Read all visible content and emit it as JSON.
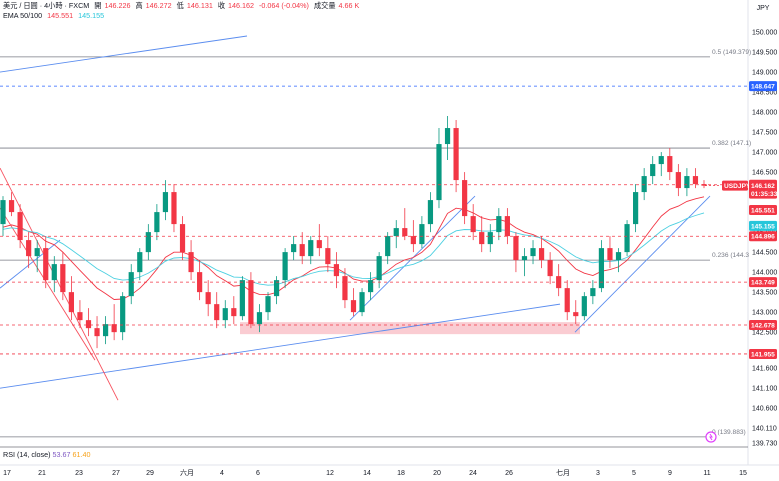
{
  "header": {
    "symbol": "美元 / 日圓 · 4小時 · FXCM",
    "open_label": "開",
    "open": "146.226",
    "high_label": "高",
    "high": "146.272",
    "low_label": "低",
    "low": "146.131",
    "close_label": "收",
    "close": "146.162",
    "change": "-0.064 (-0.04%)",
    "volume_label": "成交量",
    "volume": "4.66 K",
    "ema_label": "EMA 50/100",
    "ema50": "145.551",
    "ema100": "145.155"
  },
  "rsi": {
    "label": "RSI (14, close)",
    "value": "53.67",
    "ma": "61.40"
  },
  "currency": "JPY",
  "colors": {
    "up": "#089981",
    "down": "#f23645",
    "trend": "#5b8def",
    "ema50": "#f23645",
    "ema100": "#4dd0e1",
    "zone": "#f8bbc3"
  },
  "chart_data": {
    "type": "candlestick",
    "y_axis": {
      "ticks": [
        "150.000",
        "149.500",
        "149.000",
        "148.500",
        "148.000",
        "147.500",
        "147.000",
        "146.500",
        "146.000",
        "145.500",
        "145.000",
        "144.500",
        "144.000",
        "143.500",
        "143.000",
        "142.500",
        "142.000",
        "141.600",
        "141.100",
        "140.600",
        "140.110",
        "139.730"
      ]
    },
    "x_axis": {
      "labels": [
        "17",
        "21",
        "23",
        "27",
        "29",
        "六月",
        "4",
        "6",
        "12",
        "14",
        "18",
        "20",
        "24",
        "26",
        "七月",
        "3",
        "5",
        "9",
        "11",
        "15"
      ]
    },
    "fib_levels": [
      {
        "label": "0.5 (149.379)",
        "value": 149.379
      },
      {
        "label": "0.382 (147.1)",
        "value": 147.1
      },
      {
        "label": "0.236 (144.3",
        "value": 144.3
      },
      {
        "label": "0 (139.883)",
        "value": 139.883
      }
    ],
    "price_lines": [
      {
        "label": "148.647",
        "value": 148.647,
        "style": "blue-dashed",
        "bg": "#2962ff"
      },
      {
        "label": "146.184",
        "value": 146.184,
        "style": "red-dashed",
        "bg": "#f23645"
      },
      {
        "label": "145.551",
        "value": 145.551,
        "style": "ema50",
        "bg": "#f23645"
      },
      {
        "label": "145.155",
        "value": 145.155,
        "style": "ema100",
        "bg": "#26c6da"
      },
      {
        "label": "144.896",
        "value": 144.896,
        "style": "red-dashed",
        "bg": "#f23645"
      },
      {
        "label": "143.749",
        "value": 143.749,
        "style": "red-dashed",
        "bg": "#f23645"
      },
      {
        "label": "142.678",
        "value": 142.678,
        "style": "red-dashed",
        "bg": "#f23645"
      },
      {
        "label": "141.955",
        "value": 141.955,
        "style": "red-dashed",
        "bg": "#f23645"
      }
    ],
    "last_price": {
      "symbol": "USDJPY",
      "price": "146.162",
      "countdown": "01:35:33"
    },
    "candles": [
      [
        145.2,
        145.9,
        144.9,
        145.8
      ],
      [
        145.8,
        146.0,
        145.4,
        145.5
      ],
      [
        145.5,
        145.7,
        144.6,
        144.8
      ],
      [
        144.8,
        145.0,
        144.1,
        144.4
      ],
      [
        144.4,
        144.8,
        144.0,
        144.6
      ],
      [
        144.6,
        144.9,
        143.6,
        143.8
      ],
      [
        143.8,
        144.4,
        143.5,
        144.2
      ],
      [
        144.2,
        144.5,
        143.3,
        143.5
      ],
      [
        143.5,
        143.9,
        142.8,
        143.0
      ],
      [
        143.0,
        143.3,
        142.6,
        142.8
      ],
      [
        142.8,
        143.1,
        142.4,
        142.6
      ],
      [
        142.6,
        142.9,
        142.1,
        142.4
      ],
      [
        142.4,
        142.9,
        142.2,
        142.7
      ],
      [
        142.7,
        143.2,
        142.3,
        142.5
      ],
      [
        142.5,
        143.5,
        142.3,
        143.4
      ],
      [
        143.4,
        144.2,
        143.2,
        144.0
      ],
      [
        144.0,
        144.6,
        143.8,
        144.5
      ],
      [
        144.5,
        145.2,
        144.3,
        145.0
      ],
      [
        145.0,
        145.7,
        144.8,
        145.5
      ],
      [
        145.5,
        146.3,
        145.3,
        146.0
      ],
      [
        146.0,
        146.2,
        145.0,
        145.2
      ],
      [
        145.2,
        145.4,
        144.3,
        144.5
      ],
      [
        144.5,
        144.8,
        143.8,
        144.0
      ],
      [
        144.0,
        144.3,
        143.3,
        143.5
      ],
      [
        143.5,
        143.8,
        142.9,
        143.2
      ],
      [
        143.2,
        143.5,
        142.6,
        142.8
      ],
      [
        142.8,
        143.3,
        142.6,
        143.1
      ],
      [
        143.1,
        143.4,
        142.7,
        142.9
      ],
      [
        142.9,
        143.9,
        142.8,
        143.8
      ],
      [
        143.8,
        144.0,
        142.6,
        142.7
      ],
      [
        142.7,
        143.2,
        142.5,
        143.0
      ],
      [
        143.0,
        143.5,
        142.8,
        143.4
      ],
      [
        143.4,
        143.9,
        143.2,
        143.8
      ],
      [
        143.8,
        144.6,
        143.6,
        144.5
      ],
      [
        144.5,
        144.9,
        144.3,
        144.7
      ],
      [
        144.7,
        145.0,
        144.2,
        144.4
      ],
      [
        144.4,
        144.9,
        144.2,
        144.8
      ],
      [
        144.8,
        145.2,
        144.4,
        144.6
      ],
      [
        144.6,
        144.9,
        144.0,
        144.2
      ],
      [
        144.2,
        144.5,
        143.6,
        143.9
      ],
      [
        143.9,
        144.1,
        143.1,
        143.3
      ],
      [
        143.3,
        143.6,
        142.9,
        143.0
      ],
      [
        143.0,
        143.6,
        142.9,
        143.5
      ],
      [
        143.5,
        144.0,
        143.3,
        143.8
      ],
      [
        143.8,
        144.5,
        143.6,
        144.4
      ],
      [
        144.4,
        145.0,
        144.2,
        144.9
      ],
      [
        144.9,
        145.3,
        144.6,
        145.1
      ],
      [
        145.1,
        145.6,
        144.8,
        144.9
      ],
      [
        144.9,
        145.3,
        144.5,
        144.7
      ],
      [
        144.7,
        145.4,
        144.6,
        145.2
      ],
      [
        145.2,
        146.0,
        145.0,
        145.8
      ],
      [
        145.8,
        147.6,
        145.6,
        147.2
      ],
      [
        147.2,
        147.9,
        146.8,
        147.6
      ],
      [
        147.6,
        147.8,
        146.0,
        146.3
      ],
      [
        146.3,
        146.5,
        145.2,
        145.4
      ],
      [
        145.4,
        145.7,
        144.8,
        145.0
      ],
      [
        145.0,
        145.4,
        144.5,
        144.7
      ],
      [
        144.7,
        145.2,
        144.5,
        145.0
      ],
      [
        145.0,
        145.6,
        144.8,
        145.4
      ],
      [
        145.4,
        145.6,
        144.7,
        144.9
      ],
      [
        144.9,
        145.0,
        144.0,
        144.3
      ],
      [
        144.3,
        144.6,
        143.9,
        144.4
      ],
      [
        144.4,
        144.8,
        144.2,
        144.6
      ],
      [
        144.6,
        144.9,
        144.1,
        144.3
      ],
      [
        144.3,
        144.5,
        143.7,
        143.9
      ],
      [
        143.9,
        144.2,
        143.4,
        143.6
      ],
      [
        143.6,
        143.8,
        142.8,
        143.0
      ],
      [
        143.0,
        143.3,
        142.7,
        142.9
      ],
      [
        142.9,
        143.5,
        142.8,
        143.4
      ],
      [
        143.4,
        143.8,
        143.2,
        143.6
      ],
      [
        143.6,
        144.8,
        143.5,
        144.6
      ],
      [
        144.6,
        144.9,
        144.1,
        144.3
      ],
      [
        144.3,
        144.6,
        144.0,
        144.5
      ],
      [
        144.5,
        145.3,
        144.4,
        145.2
      ],
      [
        145.2,
        146.2,
        145.0,
        146.0
      ],
      [
        146.0,
        146.6,
        145.8,
        146.4
      ],
      [
        146.4,
        146.9,
        146.2,
        146.7
      ],
      [
        146.7,
        147.0,
        146.4,
        146.9
      ],
      [
        146.9,
        147.1,
        146.3,
        146.5
      ],
      [
        146.5,
        146.7,
        145.9,
        146.1
      ],
      [
        146.1,
        146.6,
        145.9,
        146.4
      ],
      [
        146.4,
        146.6,
        146.1,
        146.2
      ],
      [
        146.2,
        146.3,
        146.1,
        146.16
      ]
    ]
  }
}
